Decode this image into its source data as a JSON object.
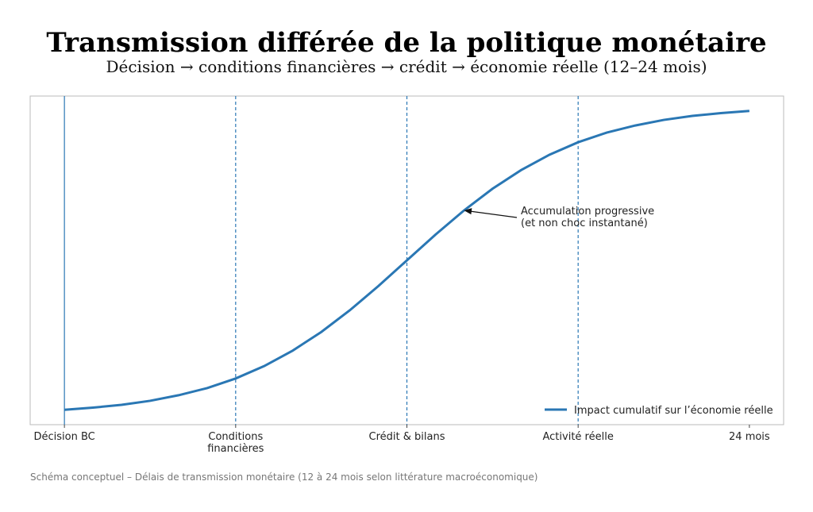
{
  "chart_data": {
    "type": "line",
    "title": "Transmission différée de la politique monétaire",
    "subtitle": "Décision → conditions financières → crédit → économie réelle (12–24 mois)",
    "footnote": "Schéma conceptuel – Délais de transmission monétaire (12 à 24 mois selon littérature macroéconomique)",
    "x": [
      0,
      1,
      2,
      3,
      4,
      5,
      6,
      7,
      8,
      9,
      10,
      11,
      12,
      13,
      14,
      15,
      16,
      17,
      18,
      19,
      20,
      21,
      22,
      23,
      24
    ],
    "series": [
      {
        "name": "Impact cumulatif sur l’économie réelle",
        "color": "#2a77b4",
        "values": [
          0.018,
          0.025,
          0.034,
          0.047,
          0.065,
          0.088,
          0.119,
          0.159,
          0.209,
          0.269,
          0.339,
          0.417,
          0.5,
          0.583,
          0.661,
          0.731,
          0.791,
          0.841,
          0.881,
          0.912,
          0.935,
          0.953,
          0.966,
          0.975,
          0.982
        ]
      }
    ],
    "xlim": [
      -1.2,
      25.2
    ],
    "ylim": [
      -0.03,
      1.03
    ],
    "xticks": [
      {
        "value": 0,
        "label": "Décision BC"
      },
      {
        "value": 6,
        "label": "Conditions\nfinancières"
      },
      {
        "value": 12,
        "label": "Crédit & bilans"
      },
      {
        "value": 18,
        "label": "Activité réelle"
      },
      {
        "value": 24,
        "label": "24 mois"
      }
    ],
    "vlines": [
      {
        "x": 0,
        "style": "solid"
      },
      {
        "x": 6,
        "style": "dashed"
      },
      {
        "x": 12,
        "style": "dashed"
      },
      {
        "x": 18,
        "style": "dashed"
      }
    ],
    "annotation": {
      "text": "Accumulation progressive\n(et non choc instantané)",
      "xy": [
        14,
        0.661
      ]
    },
    "legend": "lower right"
  }
}
